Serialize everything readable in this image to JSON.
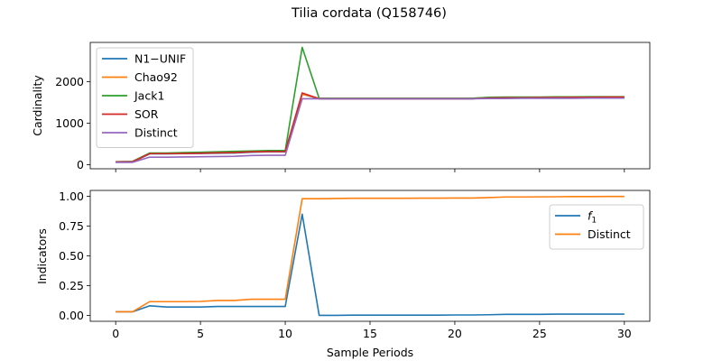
{
  "figure": {
    "title": "Tilia cordata (Q158746)",
    "xlabel": "Sample Periods"
  },
  "chart_data": [
    {
      "type": "line",
      "panel": "top",
      "title": "",
      "xlabel": "",
      "ylabel": "Cardinality",
      "xlim": [
        -1.5,
        31.5
      ],
      "ylim": [
        -100,
        2950
      ],
      "xticks": [
        0,
        5,
        10,
        15,
        20,
        25,
        30
      ],
      "yticks": [
        0,
        1000,
        2000
      ],
      "ytick_labels": [
        "0",
        "1000",
        "2000"
      ],
      "show_xtick_labels": false,
      "legend_position": "upper-left",
      "x": [
        0,
        1,
        2,
        3,
        4,
        5,
        6,
        7,
        8,
        9,
        10,
        11,
        12,
        13,
        14,
        15,
        16,
        17,
        18,
        19,
        20,
        21,
        22,
        23,
        24,
        25,
        26,
        27,
        28,
        29,
        30
      ],
      "series": [
        {
          "name": "N1−UNIF",
          "color": "#1f77b4",
          "values": [
            60,
            60,
            260,
            260,
            265,
            270,
            275,
            280,
            300,
            310,
            310,
            1700,
            1590,
            1590,
            1590,
            1590,
            1590,
            1590,
            1590,
            1590,
            1590,
            1590,
            1610,
            1610,
            1615,
            1615,
            1620,
            1620,
            1620,
            1625,
            1625
          ]
        },
        {
          "name": "Chao92",
          "color": "#ff7f0e",
          "values": [
            65,
            65,
            270,
            270,
            275,
            280,
            285,
            290,
            310,
            320,
            320,
            1700,
            1600,
            1600,
            1600,
            1600,
            1600,
            1600,
            1600,
            1600,
            1600,
            1600,
            1620,
            1620,
            1625,
            1625,
            1630,
            1630,
            1630,
            1635,
            1635
          ]
        },
        {
          "name": "Jack1",
          "color": "#2ca02c",
          "values": [
            70,
            80,
            280,
            280,
            290,
            300,
            310,
            320,
            330,
            340,
            340,
            2830,
            1600,
            1600,
            1600,
            1600,
            1600,
            1600,
            1600,
            1600,
            1600,
            1600,
            1625,
            1630,
            1630,
            1630,
            1635,
            1635,
            1640,
            1640,
            1640
          ]
        },
        {
          "name": "SOR",
          "color": "#d62728",
          "values": [
            65,
            70,
            265,
            265,
            270,
            275,
            285,
            290,
            310,
            315,
            315,
            1730,
            1590,
            1590,
            1590,
            1590,
            1590,
            1590,
            1590,
            1590,
            1590,
            1590,
            1610,
            1615,
            1615,
            1620,
            1620,
            1625,
            1625,
            1630,
            1630
          ]
        },
        {
          "name": "Distinct",
          "color": "#9467bd",
          "values": [
            55,
            55,
            180,
            180,
            185,
            190,
            195,
            200,
            220,
            225,
            225,
            1590,
            1590,
            1590,
            1590,
            1590,
            1590,
            1590,
            1590,
            1590,
            1590,
            1590,
            1595,
            1595,
            1600,
            1600,
            1600,
            1600,
            1605,
            1605,
            1605
          ]
        }
      ]
    },
    {
      "type": "line",
      "panel": "bottom",
      "title": "",
      "xlabel": "Sample Periods",
      "ylabel": "Indicators",
      "xlim": [
        -1.5,
        31.5
      ],
      "ylim": [
        -0.05,
        1.05
      ],
      "xticks": [
        0,
        5,
        10,
        15,
        20,
        25,
        30
      ],
      "xtick_labels": [
        "0",
        "5",
        "10",
        "15",
        "20",
        "25",
        "30"
      ],
      "yticks": [
        0,
        0.25,
        0.5,
        0.75,
        1.0
      ],
      "ytick_labels": [
        "0.00",
        "0.25",
        "0.50",
        "0.75",
        "1.00"
      ],
      "legend_position": "upper-right",
      "x": [
        0,
        1,
        2,
        3,
        4,
        5,
        6,
        7,
        8,
        9,
        10,
        11,
        12,
        13,
        14,
        15,
        16,
        17,
        18,
        19,
        20,
        21,
        22,
        23,
        24,
        25,
        26,
        27,
        28,
        29,
        30
      ],
      "series": [
        {
          "name": "f1",
          "color": "#1f77b4",
          "values": [
            0.03,
            0.03,
            0.08,
            0.07,
            0.07,
            0.07,
            0.075,
            0.075,
            0.075,
            0.075,
            0.075,
            0.85,
            0.0,
            0.0,
            0.002,
            0.002,
            0.002,
            0.002,
            0.002,
            0.002,
            0.003,
            0.003,
            0.005,
            0.008,
            0.008,
            0.008,
            0.01,
            0.01,
            0.01,
            0.01,
            0.01
          ]
        },
        {
          "name": "Distinct",
          "color": "#ff7f0e",
          "values": [
            0.03,
            0.03,
            0.115,
            0.115,
            0.115,
            0.117,
            0.125,
            0.125,
            0.135,
            0.135,
            0.135,
            0.98,
            0.98,
            0.982,
            0.984,
            0.984,
            0.984,
            0.984,
            0.985,
            0.985,
            0.986,
            0.986,
            0.99,
            0.995,
            0.995,
            0.996,
            0.997,
            0.998,
            0.998,
            0.999,
            0.999
          ]
        }
      ]
    }
  ]
}
